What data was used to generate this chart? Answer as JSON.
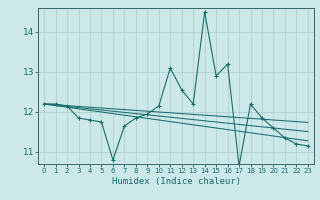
{
  "xlabel": "Humidex (Indice chaleur)",
  "bg_color": "#cce8e8",
  "grid_color": "#aacccc",
  "line_color": "#1a6b6b",
  "xlim": [
    -0.5,
    23.5
  ],
  "ylim": [
    10.7,
    14.6
  ],
  "yticks": [
    11,
    12,
    13,
    14
  ],
  "xticks": [
    0,
    1,
    2,
    3,
    4,
    5,
    6,
    7,
    8,
    9,
    10,
    11,
    12,
    13,
    14,
    15,
    16,
    17,
    18,
    19,
    20,
    21,
    22,
    23
  ],
  "main_y": [
    12.2,
    12.2,
    12.15,
    11.85,
    11.8,
    11.75,
    10.8,
    11.65,
    11.85,
    11.95,
    12.15,
    13.1,
    12.55,
    12.2,
    14.5,
    12.9,
    13.2,
    10.65,
    12.2,
    11.85,
    11.6,
    11.35,
    11.2,
    11.15
  ],
  "trend1_y": [
    12.2,
    12.18,
    12.16,
    12.14,
    12.12,
    12.1,
    12.08,
    12.06,
    12.04,
    12.02,
    12.0,
    11.98,
    11.96,
    11.94,
    11.92,
    11.9,
    11.88,
    11.86,
    11.84,
    11.82,
    11.8,
    11.78,
    11.76,
    11.74
  ],
  "trend2_y": [
    12.2,
    12.17,
    12.14,
    12.11,
    12.08,
    12.05,
    12.02,
    11.99,
    11.96,
    11.93,
    11.9,
    11.87,
    11.84,
    11.81,
    11.78,
    11.75,
    11.72,
    11.69,
    11.66,
    11.63,
    11.6,
    11.57,
    11.54,
    11.51
  ],
  "trend3_y": [
    12.2,
    12.16,
    12.12,
    12.08,
    12.04,
    12.0,
    11.96,
    11.92,
    11.88,
    11.84,
    11.8,
    11.76,
    11.72,
    11.68,
    11.64,
    11.6,
    11.56,
    11.52,
    11.48,
    11.44,
    11.4,
    11.36,
    11.32,
    11.28
  ]
}
